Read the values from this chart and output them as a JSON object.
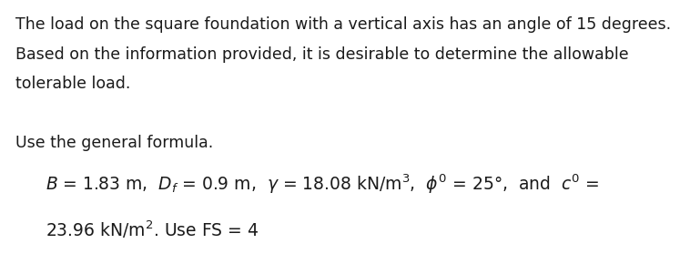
{
  "background_color": "#ffffff",
  "lines_top": [
    "The load on the square foundation with a vertical axis has an angle of 15 degrees.",
    "Based on the information provided, it is desirable to determine the allowable",
    "tolerable load.",
    "",
    "Use the general formula."
  ],
  "font_size_top": 12.5,
  "font_size_formula": 13.5,
  "text_color": "#1a1a1a"
}
